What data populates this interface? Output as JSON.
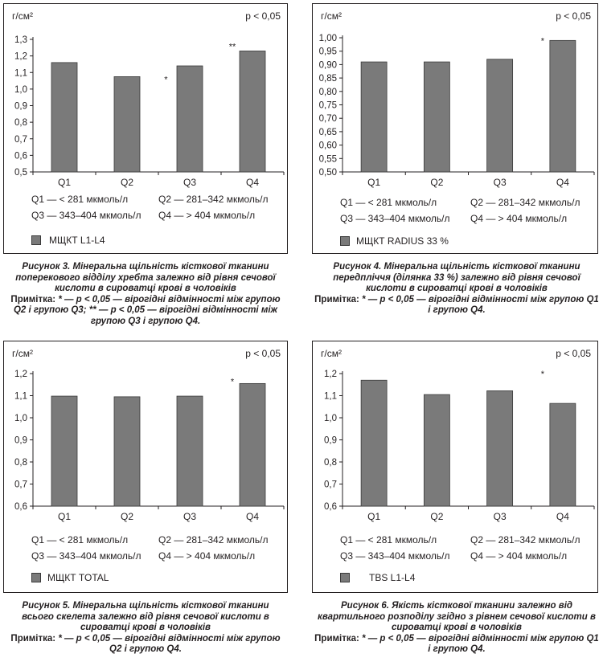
{
  "charts": [
    {
      "unit_label": "г/см²",
      "pvalue": "p < 0,05",
      "quartile_ranges": [
        "Q1 — < 281 мкмоль/л",
        "Q2 — 281–342 мкмоль/л",
        "Q3 — 343–404 мкмоль/л",
        "Q4 — > 404 мкмоль/л"
      ],
      "caption_title": "Рисунок 3. Мінеральна щільність кісткової тканини поперекового відділу хребта залежно від рівня сечової кислоти в сироватці крові в чоловіків",
      "caption_note_label": "Примітка:",
      "caption_note": "* — p < 0,05 — вірогідні відмінності між групою Q2 і групою Q3; ** — p < 0,05 — вірогідні відмінності між групою Q3 і групою Q4.",
      "chart_data": {
        "type": "bar",
        "categories": [
          "Q1",
          "Q2",
          "Q3",
          "Q4"
        ],
        "series": [
          {
            "name": "МЩКТ L1-L4",
            "values": [
              1.16,
              1.075,
              1.14,
              1.23
            ]
          }
        ],
        "ylim": [
          0.5,
          1.3
        ],
        "yticks": [
          "0,5",
          "0,6",
          "0,7",
          "0,8",
          "0,9",
          "1,0",
          "1,1",
          "1,2",
          "1,3"
        ],
        "annotations": [
          {
            "category_index": 1,
            "text": "*",
            "y": 1.06,
            "offset": "right"
          },
          {
            "category_index": 3,
            "text": "**",
            "y": 1.26,
            "offset": "left"
          }
        ],
        "grid": false,
        "legend": "bottom-left"
      }
    },
    {
      "unit_label": "г/см²",
      "pvalue": "p < 0,05",
      "quartile_ranges": [
        "Q1 — < 281 мкмоль/л",
        "Q2 — 281–342 мкмоль/л",
        "Q3 — 343–404 мкмоль/л",
        "Q4 — > 404 мкмоль/л"
      ],
      "caption_title": "Рисунок 4. Мінеральна щільність кісткової тканини передпліччя (ділянка 33 %) залежно від рівня сечової кислоти в сироватці крові в чоловіків",
      "caption_note_label": "Примітка:",
      "caption_note": "* — p < 0,05 — вірогідні відмінності між групою Q1 і групою Q4.",
      "chart_data": {
        "type": "bar",
        "categories": [
          "Q1",
          "Q2",
          "Q3",
          "Q4"
        ],
        "series": [
          {
            "name": "МЩКТ RADIUS 33 %",
            "values": [
              0.91,
              0.91,
              0.92,
              0.99
            ]
          }
        ],
        "ylim": [
          0.5,
          1.0
        ],
        "yticks": [
          "0,50",
          "0,55",
          "0,60",
          "0,65",
          "0,70",
          "0,75",
          "0,80",
          "0,85",
          "0,90",
          "0,95",
          "1,00"
        ],
        "annotations": [
          {
            "category_index": 3,
            "text": "*",
            "y": 0.99,
            "offset": "left"
          }
        ],
        "grid": false,
        "legend": "bottom-left"
      }
    },
    {
      "unit_label": "г/см²",
      "pvalue": "p < 0,05",
      "quartile_ranges": [
        "Q1 — < 281 мкмоль/л",
        "Q2 — 281–342 мкмоль/л",
        "Q3 — 343–404 мкмоль/л",
        "Q4 — > 404 мкмоль/л"
      ],
      "caption_title": "Рисунок 5. Мінеральна щільність кісткової тканини всього скелета залежно від рівня сечової кислоти в сироватці крові в чоловіків",
      "caption_note_label": "Примітка:",
      "caption_note": "* — p < 0,05 — вірогідні відмінності між групою Q2 і групою Q4.",
      "chart_data": {
        "type": "bar",
        "categories": [
          "Q1",
          "Q2",
          "Q3",
          "Q4"
        ],
        "series": [
          {
            "name": "МЩКТ TOTAL",
            "values": [
              1.098,
              1.095,
              1.098,
              1.155
            ]
          }
        ],
        "ylim": [
          0.6,
          1.2
        ],
        "yticks": [
          "0,6",
          "0,7",
          "0,8",
          "0,9",
          "1,0",
          "1,1",
          "1,2"
        ],
        "annotations": [
          {
            "category_index": 3,
            "text": "*",
            "y": 1.165,
            "offset": "left"
          }
        ],
        "grid": false,
        "legend": "bottom-left"
      }
    },
    {
      "unit_label": "г/см²",
      "pvalue": "p < 0,05",
      "quartile_ranges": [
        "Q1 — < 281 мкмоль/л",
        "Q2 — 281–342 мкмоль/л",
        "Q3 — 343–404 мкмоль/л",
        "Q4 — > 404 мкмоль/л"
      ],
      "caption_title": "Рисунок 6. Якість кісткової тканини залежно від квартильного розподілу згідно з рівнем сечової кислоти в сироватці крові в чоловіків",
      "caption_note_label": "Примітка:",
      "caption_note": "* — p < 0,05 — вірогідні відмінності між групою Q1 і групою Q4.",
      "chart_data": {
        "type": "bar",
        "categories": [
          "Q1",
          "Q2",
          "Q3",
          "Q4"
        ],
        "series": [
          {
            "name": "TBS L1-L4",
            "values": [
              1.17,
              1.105,
              1.122,
              1.065
            ]
          }
        ],
        "ylim": [
          0.6,
          1.2
        ],
        "yticks": [
          "0,6",
          "0,7",
          "0,8",
          "0,9",
          "1,0",
          "1,1",
          "1,2"
        ],
        "annotations": [
          {
            "category_index": 3,
            "text": "*",
            "y": 1.2,
            "offset": "left"
          }
        ],
        "grid": false,
        "legend": "bottom-left"
      }
    }
  ],
  "colors": {
    "bar_fill": "#7a7a7a",
    "bar_stroke": "#3a3a3a",
    "axis": "#231f20",
    "text": "#231f20"
  }
}
